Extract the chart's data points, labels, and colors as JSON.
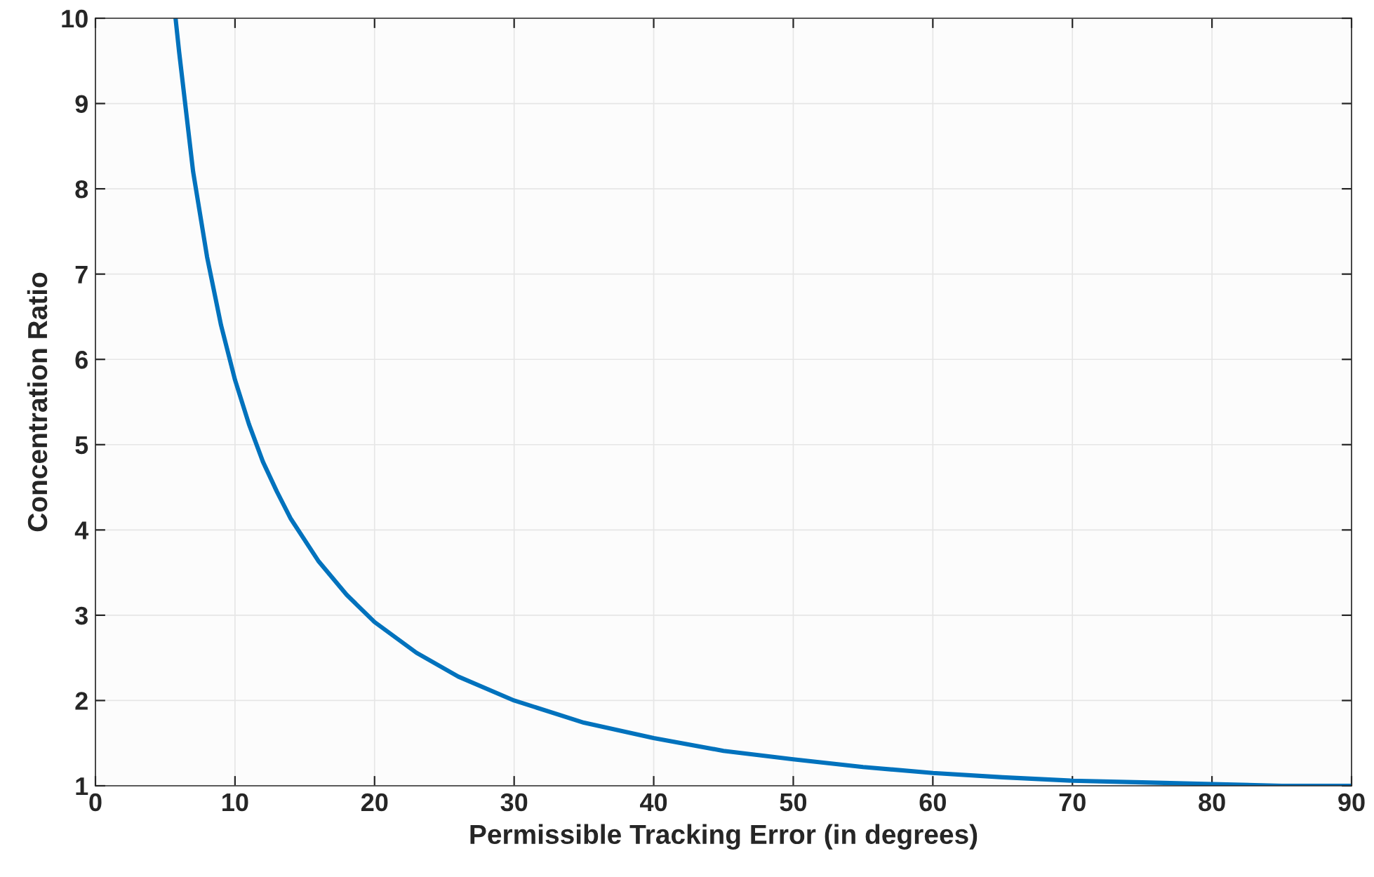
{
  "chart_data": {
    "type": "line",
    "xlabel": "Permissible Tracking Error (in degrees)",
    "ylabel": "Concentration Ratio",
    "series": [
      {
        "color": "#0072bd",
        "x": [
          5.74,
          6,
          7,
          8,
          9,
          10,
          11,
          12,
          13,
          14,
          16,
          18,
          20,
          23,
          26,
          30,
          35,
          40,
          45,
          50,
          55,
          60,
          65,
          70,
          75,
          80,
          85,
          90
        ],
        "values": [
          10,
          9.6,
          8.2,
          7.2,
          6.4,
          5.76,
          5.24,
          4.8,
          4.45,
          4.13,
          3.63,
          3.24,
          2.92,
          2.56,
          2.28,
          2.0,
          1.74,
          1.56,
          1.41,
          1.31,
          1.22,
          1.15,
          1.1,
          1.06,
          1.04,
          1.02,
          1.0,
          1.0
        ]
      }
    ],
    "xlim": [
      0,
      90
    ],
    "xticks": [
      0,
      10,
      20,
      30,
      40,
      50,
      60,
      70,
      80,
      90
    ],
    "ylim": [
      1,
      10
    ],
    "yticks": [
      1,
      2,
      3,
      4,
      5,
      6,
      7,
      8,
      9,
      10
    ],
    "grid": true,
    "line_style": "solid",
    "marker": "none"
  }
}
